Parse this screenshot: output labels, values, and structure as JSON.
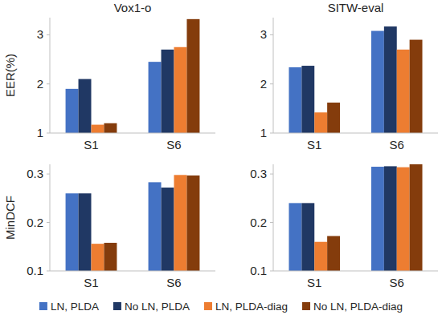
{
  "chart_data": [
    {
      "type": "bar",
      "title": "Vox1-o",
      "ylabel": "EER(%)",
      "categories": [
        "S1",
        "S6"
      ],
      "ylim": [
        1,
        3.35
      ],
      "yticks": [
        1,
        2,
        3
      ],
      "grid": false,
      "legend": "bottom",
      "series": [
        {
          "name": "LN, PLDA",
          "color": "#4472c4",
          "values": [
            1.9,
            2.45
          ]
        },
        {
          "name": "No LN, PLDA",
          "color": "#203864",
          "values": [
            2.1,
            2.7
          ]
        },
        {
          "name": "LN, PLDA-diag",
          "color": "#ed7d31",
          "values": [
            1.17,
            2.75
          ]
        },
        {
          "name": "No LN, PLDA-diag",
          "color": "#843c0c",
          "values": [
            1.2,
            3.32
          ]
        }
      ]
    },
    {
      "type": "bar",
      "title": "SITW-eval",
      "categories": [
        "S1",
        "S6"
      ],
      "ylim": [
        1,
        3.35
      ],
      "yticks": [
        1,
        2,
        3
      ],
      "grid": false,
      "series": [
        {
          "color": "#4472c4",
          "values": [
            2.34,
            3.08
          ]
        },
        {
          "color": "#203864",
          "values": [
            2.37,
            3.17
          ]
        },
        {
          "color": "#ed7d31",
          "values": [
            1.42,
            2.7
          ]
        },
        {
          "color": "#843c0c",
          "values": [
            1.62,
            2.9
          ]
        }
      ]
    },
    {
      "type": "bar",
      "ylabel": "MinDCF",
      "categories": [
        "S1",
        "S6"
      ],
      "ylim": [
        0.1,
        0.32
      ],
      "yticks": [
        0.1,
        0.2,
        0.3
      ],
      "grid": false,
      "series": [
        {
          "color": "#4472c4",
          "values": [
            0.26,
            0.283
          ]
        },
        {
          "color": "#203864",
          "values": [
            0.26,
            0.272
          ]
        },
        {
          "color": "#ed7d31",
          "values": [
            0.156,
            0.298
          ]
        },
        {
          "color": "#843c0c",
          "values": [
            0.158,
            0.297
          ]
        }
      ]
    },
    {
      "type": "bar",
      "categories": [
        "S1",
        "S6"
      ],
      "ylim": [
        0.1,
        0.32
      ],
      "yticks": [
        0.1,
        0.2,
        0.3
      ],
      "grid": false,
      "series": [
        {
          "color": "#4472c4",
          "values": [
            0.24,
            0.315
          ]
        },
        {
          "color": "#203864",
          "values": [
            0.24,
            0.316
          ]
        },
        {
          "color": "#ed7d31",
          "values": [
            0.16,
            0.314
          ]
        },
        {
          "color": "#843c0c",
          "values": [
            0.172,
            0.32
          ]
        }
      ]
    }
  ]
}
